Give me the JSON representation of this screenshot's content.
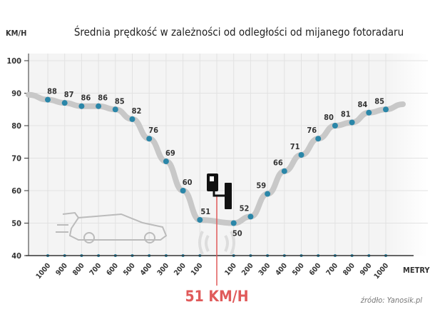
{
  "chart_data": {
    "type": "line",
    "title": "Średnia prędkość w zależności od odległości od mijanego fotoradaru",
    "ylabel": "KM/H",
    "xlabel": "METRY",
    "ylim": [
      40,
      100
    ],
    "yticks": [
      40,
      50,
      60,
      70,
      80,
      90,
      100
    ],
    "grid": true,
    "categories": [
      "1000",
      "900",
      "800",
      "700",
      "600",
      "500",
      "400",
      "300",
      "200",
      "100",
      "100",
      "200",
      "300",
      "400",
      "500",
      "600",
      "700",
      "800",
      "900",
      "1000"
    ],
    "series": [
      {
        "name": "Średnia prędkość",
        "values": [
          88,
          87,
          86,
          86,
          85,
          82,
          76,
          69,
          60,
          51,
          50,
          52,
          59,
          66,
          71,
          76,
          80,
          81,
          84,
          85
        ]
      }
    ],
    "annotation": "51 KM/H",
    "source": "źródło: Yanosik.pl",
    "colors": {
      "line": "#c8c8c8",
      "point": "#2a86a8",
      "marker": "#e05a5a"
    }
  }
}
